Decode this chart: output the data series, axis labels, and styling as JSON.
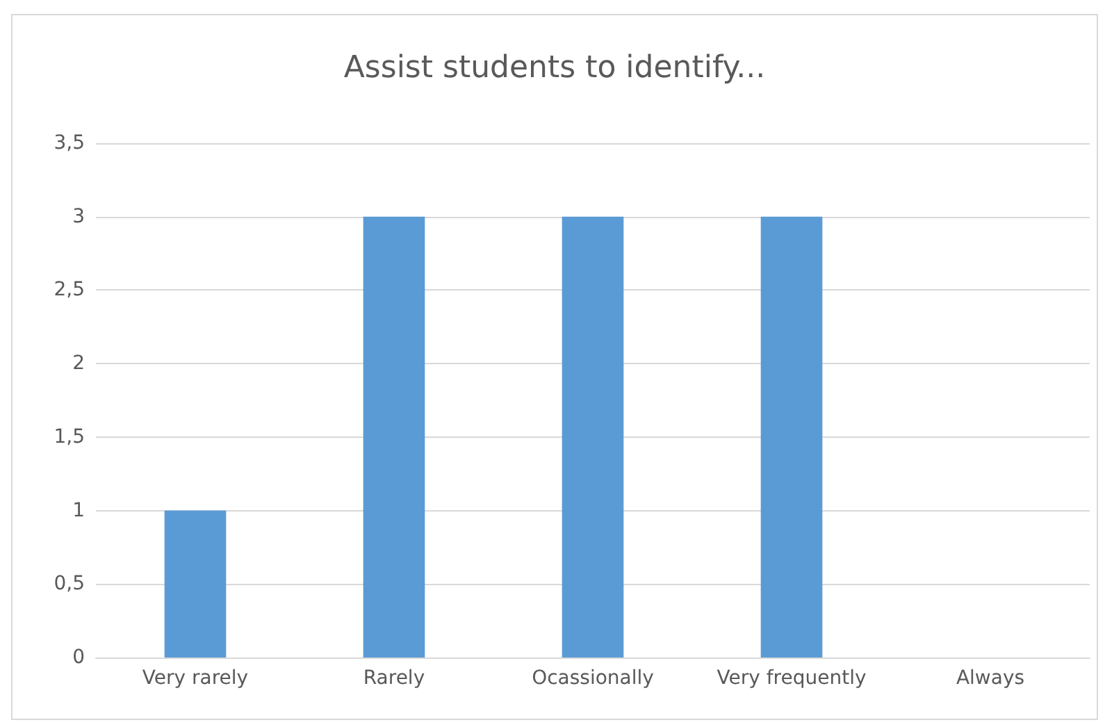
{
  "chart_data": {
    "type": "bar",
    "title": "Assist students to identify...",
    "categories": [
      "Very rarely",
      "Rarely",
      "Ocassionally",
      "Very frequently",
      "Always"
    ],
    "values": [
      1,
      3,
      3,
      3,
      0
    ],
    "color": "#5b9bd5",
    "ylim": [
      0,
      3.5
    ],
    "yticks": [
      0,
      {
        "value": 0.5,
        "label": "0,5"
      },
      1,
      {
        "value": 1.5,
        "label": "1,5"
      },
      2,
      {
        "value": 2.5,
        "label": "2,5"
      },
      3,
      {
        "value": 3.5,
        "label": "3,5"
      }
    ],
    "grid": "y"
  }
}
